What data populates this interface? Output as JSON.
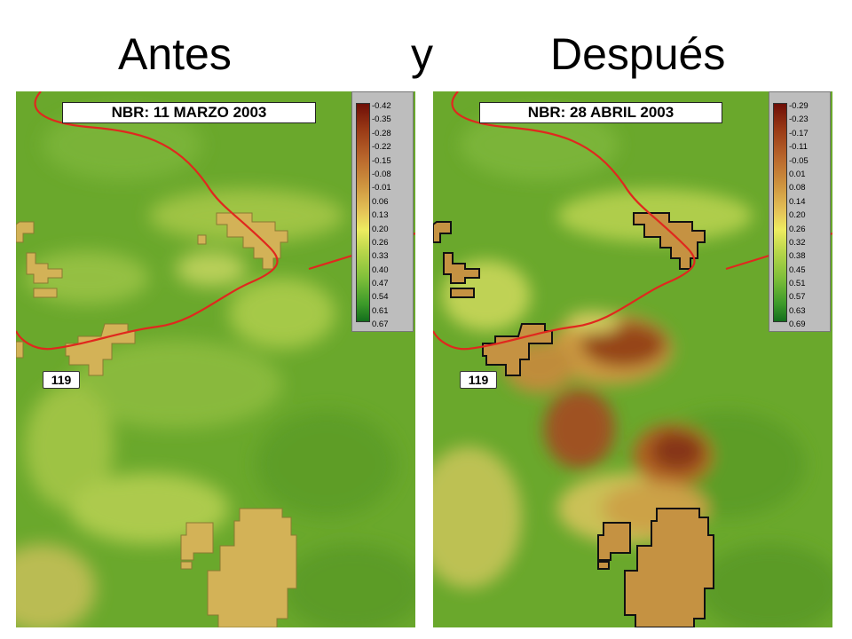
{
  "titles": {
    "left": "Antes",
    "middle": "y",
    "right": "Después"
  },
  "panels": {
    "before": {
      "label": "NBR: 11 MARZO 2003",
      "road_shield": "119",
      "legend_ticks": [
        "-0.42",
        "-0.35",
        "-0.28",
        "-0.22",
        "-0.15",
        "-0.08",
        "-0.01",
        "0.06",
        "0.13",
        "0.20",
        "0.26",
        "0.33",
        "0.40",
        "0.47",
        "0.54",
        "0.61",
        "0.67"
      ]
    },
    "after": {
      "label": "NBR: 28 ABRIL 2003",
      "road_shield": "119",
      "legend_ticks": [
        "-0.29",
        "-0.23",
        "-0.17",
        "-0.11",
        "-0.05",
        "0.01",
        "0.08",
        "0.14",
        "0.20",
        "0.26",
        "0.32",
        "0.38",
        "0.45",
        "0.51",
        "0.57",
        "0.63",
        "0.69"
      ]
    }
  },
  "colors": {
    "road": "#e0281e",
    "fire_perimeter_fill": "#d3b257",
    "burn_high": "#7a1a0a",
    "vegetation_high": "#3f9a2a"
  }
}
